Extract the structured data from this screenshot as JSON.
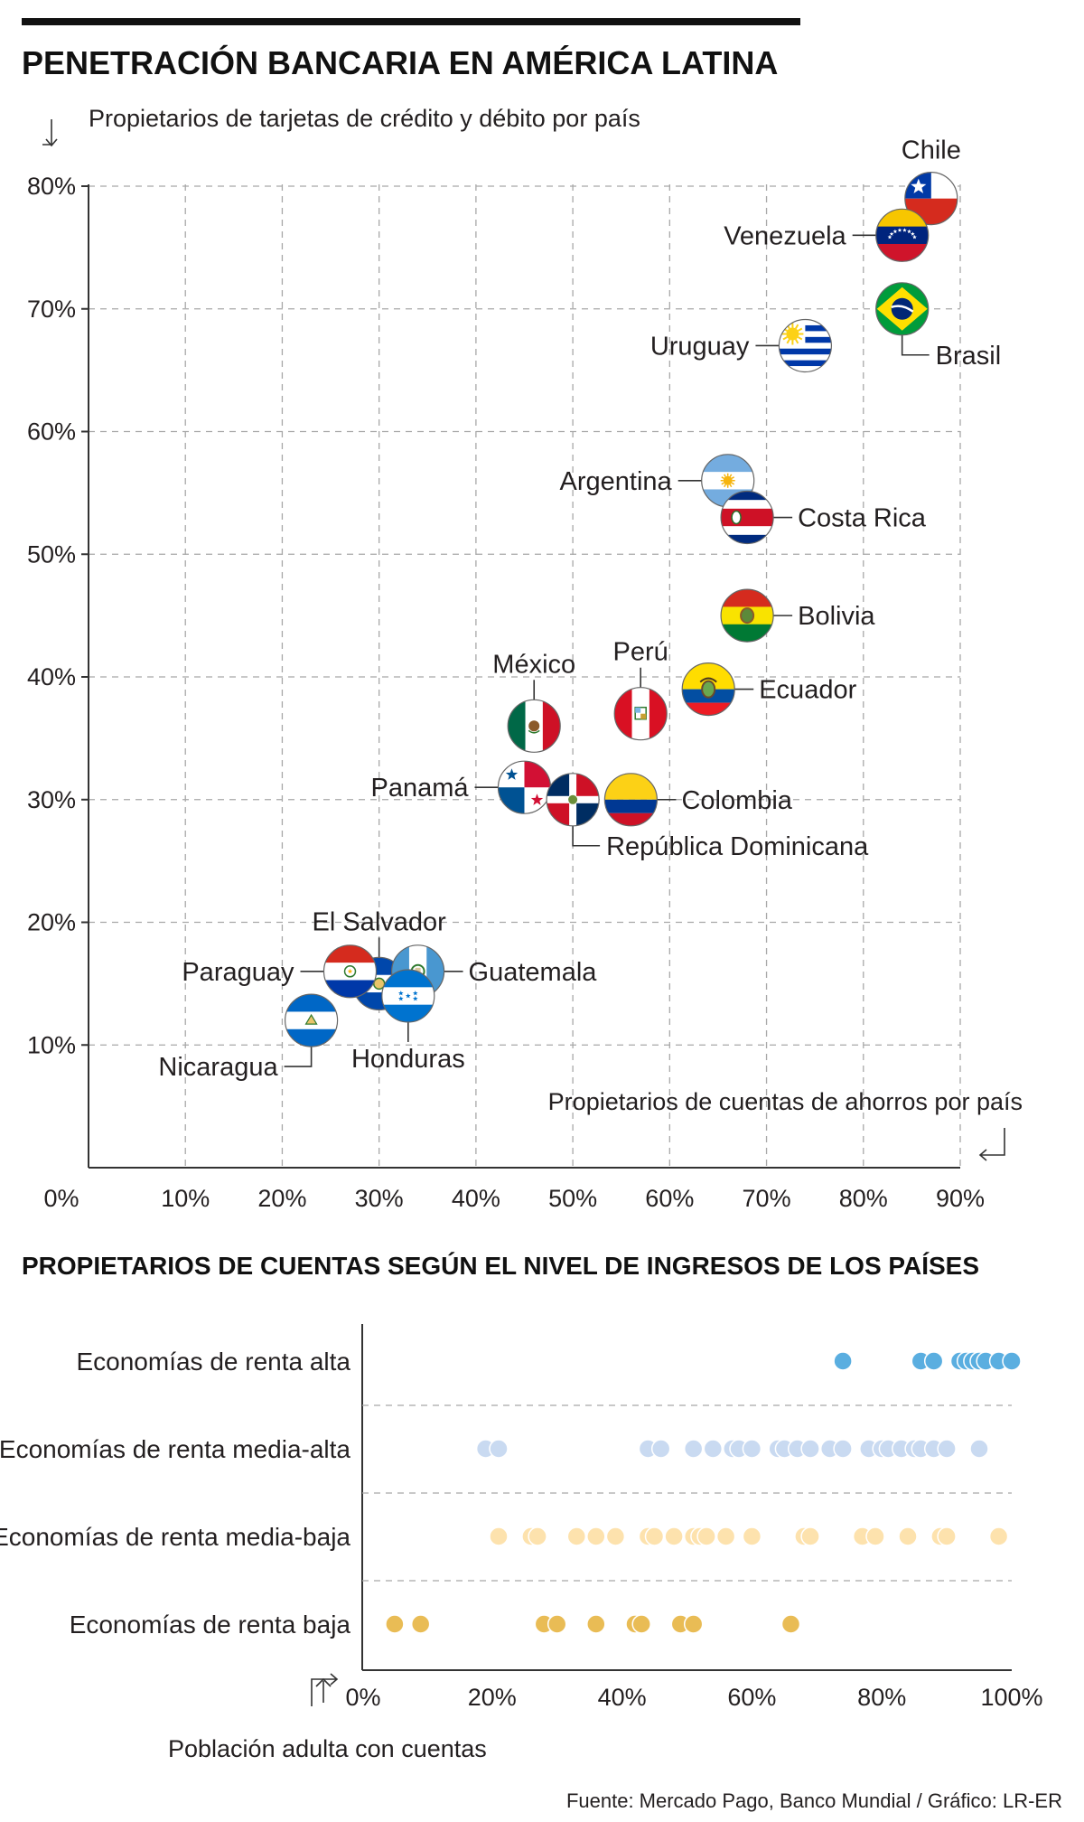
{
  "title": "PENETRACIÓN BANCARIA EN AMÉRICA LATINA",
  "subtitle": "PROPIETARIOS DE CUENTAS SEGÚN EL NIVEL DE INGRESOS DE LOS PAÍSES",
  "source": "Fuente: Mercado Pago, Banco Mundial / Gráfico: LR-ER",
  "colors": {
    "renta_alta": "#5aaee0",
    "renta_media_alta": "#c9daf1",
    "renta_media_baja": "#fde2ad",
    "renta_baja": "#e9bc55"
  },
  "chart_data": [
    {
      "type": "scatter",
      "ylabel": "Propietarios de tarjetas de crédito y débito por país",
      "xlabel": "Propietarios de cuentas de ahorros por país",
      "xlim": [
        0,
        90
      ],
      "ylim": [
        0,
        80
      ],
      "x_ticks": [
        "0%",
        "10%",
        "20%",
        "30%",
        "40%",
        "50%",
        "60%",
        "70%",
        "80%",
        "90%"
      ],
      "y_ticks": [
        "10%",
        "20%",
        "30%",
        "40%",
        "50%",
        "60%",
        "70%",
        "80%"
      ],
      "grid": true,
      "points": [
        {
          "country": "Chile",
          "x": 87,
          "y": 79,
          "flag": "chile-flag"
        },
        {
          "country": "Venezuela",
          "x": 84,
          "y": 76,
          "flag": "venezuela-flag"
        },
        {
          "country": "Brasil",
          "x": 84,
          "y": 70,
          "flag": "brazil-flag"
        },
        {
          "country": "Uruguay",
          "x": 74,
          "y": 67,
          "flag": "uruguay-flag"
        },
        {
          "country": "Argentina",
          "x": 66,
          "y": 56,
          "flag": "argentina-flag"
        },
        {
          "country": "Costa Rica",
          "x": 68,
          "y": 53,
          "flag": "costa-rica-flag"
        },
        {
          "country": "Bolivia",
          "x": 68,
          "y": 45,
          "flag": "bolivia-flag"
        },
        {
          "country": "Ecuador",
          "x": 64,
          "y": 39,
          "flag": "ecuador-flag"
        },
        {
          "country": "Perú",
          "x": 57,
          "y": 37,
          "flag": "peru-flag"
        },
        {
          "country": "México",
          "x": 46,
          "y": 36,
          "flag": "mexico-flag"
        },
        {
          "country": "Panamá",
          "x": 45,
          "y": 31,
          "flag": "panama-flag"
        },
        {
          "country": "República Dominicana",
          "x": 50,
          "y": 30,
          "flag": "dominican-republic-flag"
        },
        {
          "country": "Colombia",
          "x": 56,
          "y": 30,
          "flag": "colombia-flag"
        },
        {
          "country": "El Salvador",
          "x": 30,
          "y": 15,
          "flag": "el-salvador-flag"
        },
        {
          "country": "Paraguay",
          "x": 27,
          "y": 16,
          "flag": "paraguay-flag"
        },
        {
          "country": "Guatemala",
          "x": 34,
          "y": 16,
          "flag": "guatemala-flag"
        },
        {
          "country": "Honduras",
          "x": 33,
          "y": 14,
          "flag": "honduras-flag"
        },
        {
          "country": "Nicaragua",
          "x": 23,
          "y": 12,
          "flag": "nicaragua-flag"
        }
      ]
    },
    {
      "type": "dot_strip",
      "xlabel": "Población adulta con cuentas",
      "xlim": [
        0,
        100
      ],
      "x_ticks": [
        "0%",
        "20%",
        "40%",
        "60%",
        "80%",
        "100%"
      ],
      "series": [
        {
          "name": "Economías de renta alta",
          "color": "#5aaee0",
          "values": [
            74,
            86,
            88,
            92,
            93,
            94,
            95,
            96,
            98,
            100
          ]
        },
        {
          "name": "Economías de renta media-alta",
          "color": "#c9daf1",
          "values": [
            19,
            21,
            44,
            46,
            51,
            54,
            57,
            58,
            60,
            64,
            65,
            67,
            69,
            72,
            74,
            78,
            80,
            81,
            83,
            85,
            86,
            88,
            90,
            95
          ]
        },
        {
          "name": "Economías de renta media-baja",
          "color": "#fde2ad",
          "values": [
            21,
            26,
            27,
            33,
            36,
            39,
            44,
            45,
            48,
            51,
            52,
            53,
            56,
            60,
            68,
            69,
            77,
            79,
            84,
            89,
            90,
            98
          ]
        },
        {
          "name": "Economías de renta baja",
          "color": "#e9bc55",
          "values": [
            5,
            9,
            28,
            30,
            36,
            42,
            43,
            49,
            51,
            66
          ]
        }
      ]
    }
  ]
}
